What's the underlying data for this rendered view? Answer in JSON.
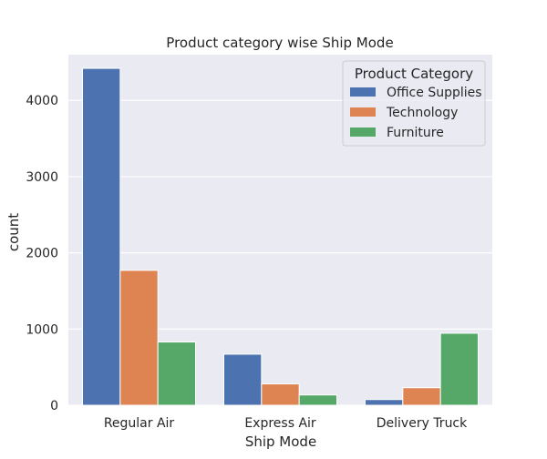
{
  "chart_data": {
    "type": "bar",
    "title": "Product category wise Ship Mode",
    "xlabel": "Ship Mode",
    "ylabel": "count",
    "categories": [
      "Regular Air",
      "Express Air",
      "Delivery Truck"
    ],
    "series": [
      {
        "name": "Office Supplies",
        "values": [
          4420,
          670,
          75
        ],
        "color": "#4c72b0"
      },
      {
        "name": "Technology",
        "values": [
          1770,
          280,
          230
        ],
        "color": "#dd8452"
      },
      {
        "name": "Furniture",
        "values": [
          830,
          135,
          945
        ],
        "color": "#55a868"
      }
    ],
    "ylim": [
      0,
      4600
    ],
    "yticks": [
      0,
      1000,
      2000,
      3000,
      4000
    ],
    "legend_title": "Product Category",
    "legend_position": "top-right",
    "grid": true,
    "colors": {
      "plot_background": "#eaeaf2",
      "grid": "#ffffff"
    }
  }
}
